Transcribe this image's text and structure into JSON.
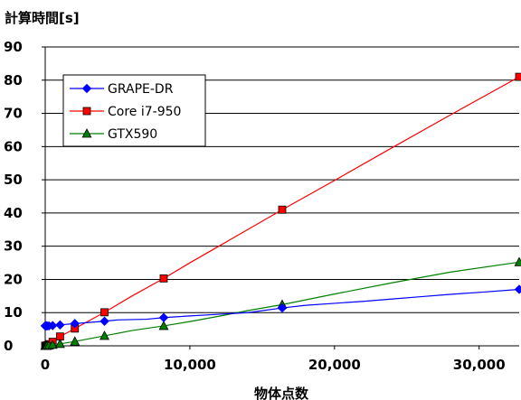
{
  "chart_data": {
    "type": "line",
    "title": "",
    "ylabel": "計算時間[s]",
    "xlabel": "物体点数",
    "xlim": [
      0,
      32768
    ],
    "ylim": [
      0,
      90
    ],
    "xticks": [
      0,
      10000,
      20000,
      30000
    ],
    "xtick_labels": [
      "0",
      "10,000",
      "20,000",
      "30,000"
    ],
    "yticks": [
      0,
      10,
      20,
      30,
      40,
      50,
      60,
      70,
      80,
      90
    ],
    "ytick_labels": [
      "0",
      "10",
      "20",
      "30",
      "40",
      "50",
      "60",
      "70",
      "80",
      "90"
    ],
    "grid": "horizontal",
    "legend_position": "top-left",
    "series": [
      {
        "name": "GRAPE-DR",
        "color": "#0000ff",
        "marker": "diamond",
        "line": [
          [
            0,
            6.0
          ],
          [
            16,
            6.0
          ],
          [
            32,
            6.0
          ],
          [
            64,
            6.0
          ],
          [
            128,
            6.0
          ],
          [
            256,
            6.0
          ],
          [
            512,
            6.1
          ],
          [
            1024,
            6.3
          ],
          [
            2048,
            6.7
          ],
          [
            4096,
            7.4
          ],
          [
            5000,
            7.8
          ],
          [
            6000,
            7.9
          ],
          [
            7000,
            8.0
          ],
          [
            8192,
            8.5
          ],
          [
            10000,
            9.0
          ],
          [
            12000,
            9.5
          ],
          [
            14000,
            10.0
          ],
          [
            16384,
            11.4
          ],
          [
            18000,
            12.2
          ],
          [
            20000,
            12.8
          ],
          [
            22000,
            13.4
          ],
          [
            24000,
            14.1
          ],
          [
            26000,
            14.8
          ],
          [
            28000,
            15.5
          ],
          [
            30000,
            16.1
          ],
          [
            32768,
            17.0
          ]
        ],
        "markers": [
          [
            0,
            6.0
          ],
          [
            16,
            6.0
          ],
          [
            32,
            6.0
          ],
          [
            64,
            6.0
          ],
          [
            128,
            6.0
          ],
          [
            256,
            6.0
          ],
          [
            512,
            6.1
          ],
          [
            1024,
            6.3
          ],
          [
            2048,
            6.7
          ],
          [
            4096,
            7.4
          ],
          [
            8192,
            8.5
          ],
          [
            16384,
            11.4
          ],
          [
            32768,
            17.0
          ]
        ]
      },
      {
        "name": "Core i7-950",
        "color": "#ff0000",
        "marker": "square",
        "line": [
          [
            0,
            0.0
          ],
          [
            16,
            0.0
          ],
          [
            32,
            0.0
          ],
          [
            64,
            0.0
          ],
          [
            128,
            0.2
          ],
          [
            256,
            0.5
          ],
          [
            512,
            1.2
          ],
          [
            1024,
            2.8
          ],
          [
            2048,
            5.2
          ],
          [
            4096,
            10.1
          ],
          [
            6000,
            15.0
          ],
          [
            8192,
            20.3
          ],
          [
            10000,
            25.0
          ],
          [
            12000,
            30.0
          ],
          [
            14000,
            35.0
          ],
          [
            16384,
            41.0
          ],
          [
            20000,
            49.8
          ],
          [
            24000,
            59.7
          ],
          [
            28000,
            69.5
          ],
          [
            32768,
            81.0
          ]
        ],
        "markers": [
          [
            0,
            0.0
          ],
          [
            16,
            0.0
          ],
          [
            32,
            0.0
          ],
          [
            64,
            0.0
          ],
          [
            128,
            0.2
          ],
          [
            256,
            0.5
          ],
          [
            512,
            1.2
          ],
          [
            1024,
            2.8
          ],
          [
            2048,
            5.2
          ],
          [
            4096,
            10.1
          ],
          [
            8192,
            20.3
          ],
          [
            16384,
            41.0
          ],
          [
            32768,
            81.0
          ]
        ]
      },
      {
        "name": "GTX590",
        "color": "#008000",
        "marker": "triangle",
        "line": [
          [
            0,
            0.0
          ],
          [
            16,
            0.0
          ],
          [
            32,
            0.0
          ],
          [
            64,
            0.0
          ],
          [
            128,
            0.0
          ],
          [
            256,
            0.1
          ],
          [
            512,
            0.3
          ],
          [
            1024,
            0.6
          ],
          [
            2048,
            1.3
          ],
          [
            4096,
            3.0
          ],
          [
            6000,
            4.6
          ],
          [
            8192,
            6.0
          ],
          [
            10000,
            7.3
          ],
          [
            12000,
            8.9
          ],
          [
            14000,
            10.6
          ],
          [
            16384,
            12.4
          ],
          [
            20000,
            15.6
          ],
          [
            24000,
            19.0
          ],
          [
            28000,
            22.2
          ],
          [
            32768,
            25.2
          ]
        ],
        "markers": [
          [
            0,
            0.0
          ],
          [
            16,
            0.0
          ],
          [
            32,
            0.0
          ],
          [
            64,
            0.0
          ],
          [
            128,
            0.0
          ],
          [
            256,
            0.1
          ],
          [
            512,
            0.3
          ],
          [
            1024,
            0.6
          ],
          [
            2048,
            1.3
          ],
          [
            4096,
            3.0
          ],
          [
            8192,
            6.0
          ],
          [
            16384,
            12.4
          ],
          [
            32768,
            25.2
          ]
        ]
      }
    ]
  }
}
